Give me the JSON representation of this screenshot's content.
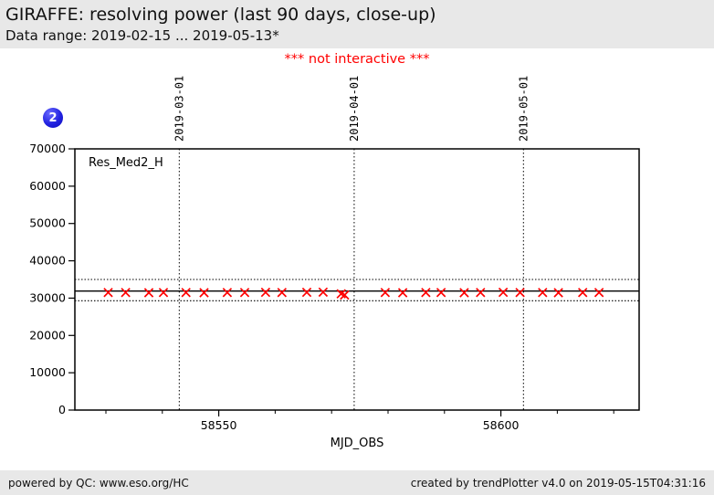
{
  "header": {
    "title": "GIRAFFE: resolving power (last 90 days, close-up)",
    "subtitle": "Data range: 2019-02-15 ... 2019-05-13*"
  },
  "notice": "*** not interactive ***",
  "badge": "2",
  "footer": {
    "left": "powered by QC: www.eso.org/HC",
    "right": "created by trendPlotter v4.0 on 2019-05-15T04:31:16"
  },
  "colors": {
    "marker": "#ff0000",
    "notice": "#ff0000",
    "badge_blue": "#2222dd",
    "band_background": "#e8e8e8",
    "axis_black": "#000000"
  },
  "chart_data": {
    "type": "scatter",
    "series_label": "Res_Med2_H",
    "xlabel": "MJD_OBS",
    "ylabel": "",
    "marker": "x",
    "grid": false,
    "xlim": [
      58524.5,
      58624.5
    ],
    "ylim": [
      0,
      70000
    ],
    "y_ticks": [
      0,
      10000,
      20000,
      30000,
      40000,
      50000,
      60000,
      70000
    ],
    "x_major_ticks": [
      58550,
      58600
    ],
    "x_minor_ticks": [
      58530,
      58540,
      58560,
      58570,
      58580,
      58590,
      58610,
      58620
    ],
    "date_lines": [
      {
        "label": "2019-03-01",
        "mjd": 58543
      },
      {
        "label": "2019-04-01",
        "mjd": 58574
      },
      {
        "label": "2019-05-01",
        "mjd": 58604
      }
    ],
    "reference_lines": {
      "center": 31900,
      "upper": 35000,
      "lower": 29300
    },
    "points": [
      [
        58530.4,
        31500
      ],
      [
        58533.5,
        31500
      ],
      [
        58537.6,
        31450
      ],
      [
        58540.2,
        31500
      ],
      [
        58544.2,
        31500
      ],
      [
        58547.4,
        31450
      ],
      [
        58551.5,
        31500
      ],
      [
        58554.6,
        31500
      ],
      [
        58558.3,
        31550
      ],
      [
        58561.2,
        31500
      ],
      [
        58565.6,
        31550
      ],
      [
        58568.5,
        31600
      ],
      [
        58571.7,
        31150
      ],
      [
        58572.3,
        30850
      ],
      [
        58579.5,
        31500
      ],
      [
        58582.6,
        31450
      ],
      [
        58586.7,
        31500
      ],
      [
        58589.4,
        31500
      ],
      [
        58593.5,
        31450
      ],
      [
        58596.4,
        31500
      ],
      [
        58600.4,
        31550
      ],
      [
        58603.4,
        31500
      ],
      [
        58607.4,
        31500
      ],
      [
        58610.2,
        31450
      ],
      [
        58614.5,
        31500
      ],
      [
        58617.4,
        31500
      ]
    ]
  }
}
